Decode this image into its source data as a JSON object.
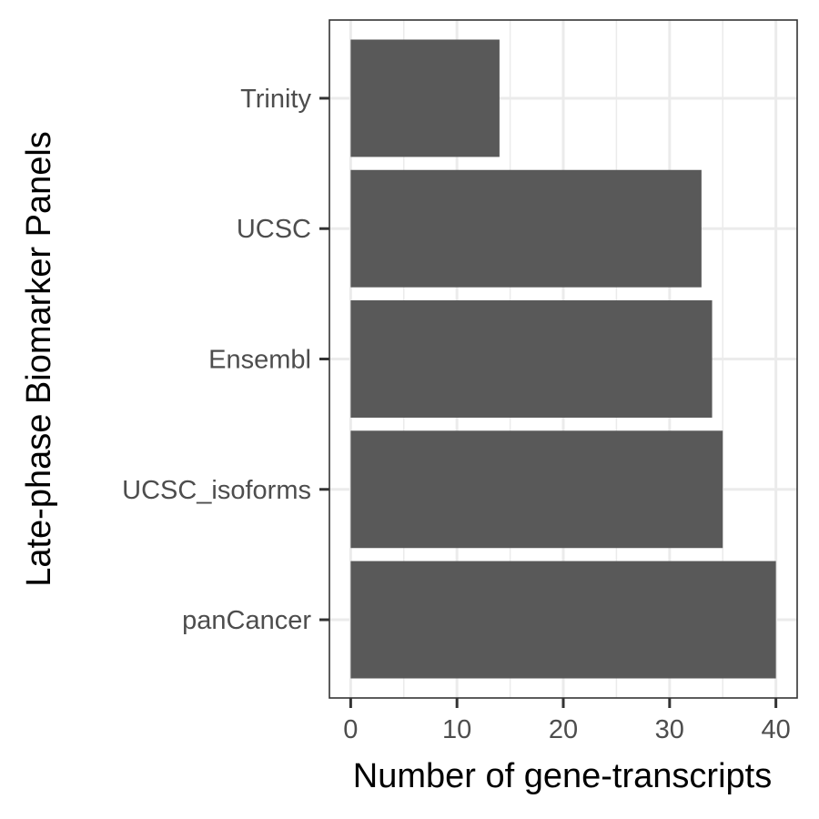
{
  "chart_data": {
    "type": "bar",
    "orientation": "horizontal",
    "categories": [
      "Trinity",
      "UCSC",
      "Ensembl",
      "UCSC_isoforms",
      "panCancer"
    ],
    "values": [
      14,
      33,
      34,
      35,
      40
    ],
    "xlabel": "Number of gene-transcripts",
    "ylabel": "Late-phase Biomarker Panels",
    "xlim": [
      -2,
      42
    ],
    "xticks": [
      0,
      10,
      20,
      30,
      40
    ],
    "grid": true,
    "bar_color": "#595959",
    "grid_color": "#ebebeb",
    "panel_border_color": "#333333"
  }
}
